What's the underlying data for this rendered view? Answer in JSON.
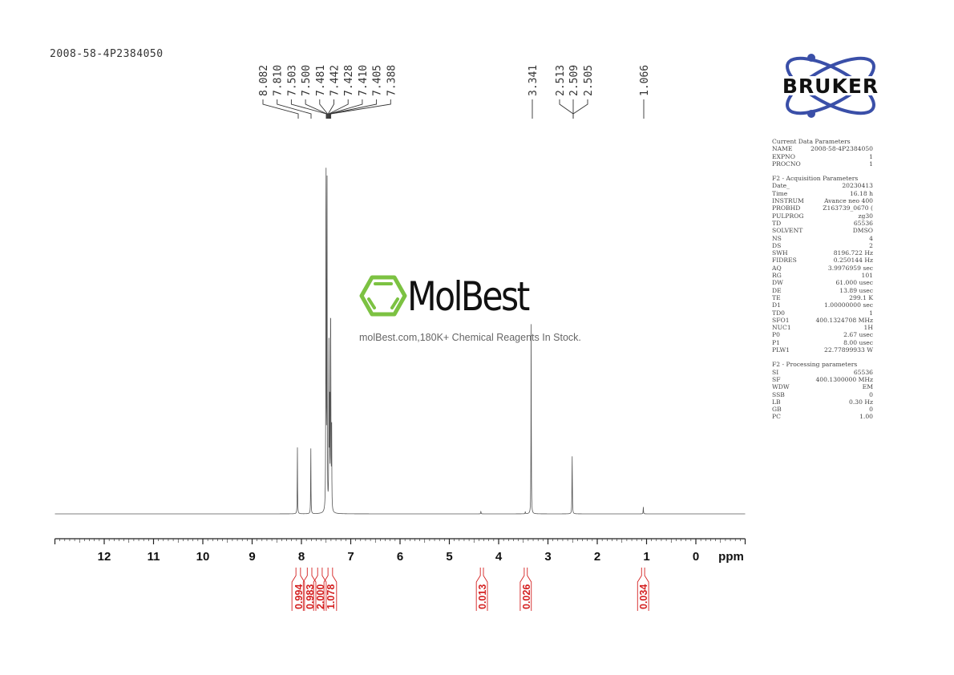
{
  "title": "2008-58-4P2384050",
  "logo": {
    "text": "BRUKER",
    "color": "#3a4fa8"
  },
  "watermark": {
    "name": "MolBest",
    "tagline": "molBest.com,180K+ Chemical Reagents In Stock.",
    "color": "#7cc242"
  },
  "parameters": [
    {
      "heading": "Current Data Parameters",
      "rows": [
        [
          "NAME",
          "2008-58-4P2384050"
        ],
        [
          "EXPNO",
          "1"
        ],
        [
          "PROCNO",
          "1"
        ]
      ]
    },
    {
      "heading": "F2 - Acquisition Parameters",
      "rows": [
        [
          "Date_",
          "20230413"
        ],
        [
          "Time",
          "16.18 h"
        ],
        [
          "INSTRUM",
          "Avance neo 400"
        ],
        [
          "PROBHD",
          "Z163739_0670 ("
        ],
        [
          "PULPROG",
          "zg30"
        ],
        [
          "TD",
          "65536"
        ],
        [
          "SOLVENT",
          "DMSO"
        ],
        [
          "NS",
          "4"
        ],
        [
          "DS",
          "2"
        ],
        [
          "SWH",
          "8196.722 Hz"
        ],
        [
          "FIDRES",
          "0.250144 Hz"
        ],
        [
          "AQ",
          "3.9976959 sec"
        ],
        [
          "RG",
          "101"
        ],
        [
          "DW",
          "61.000 usec"
        ],
        [
          "DE",
          "13.89 usec"
        ],
        [
          "TE",
          "299.1 K"
        ],
        [
          "D1",
          "1.00000000 sec"
        ],
        [
          "TD0",
          "1"
        ],
        [
          "SFO1",
          "400.1324708 MHz"
        ],
        [
          "NUC1",
          "1H"
        ],
        [
          "P0",
          "2.67 usec"
        ],
        [
          "P1",
          "8.00 usec"
        ],
        [
          "PLW1",
          "22.77899933 W"
        ]
      ]
    },
    {
      "heading": "F2 - Processing parameters",
      "rows": [
        [
          "SI",
          "65536"
        ],
        [
          "SF",
          "400.1300000 MHz"
        ],
        [
          "WDW",
          "EM"
        ],
        [
          "SSB",
          "0"
        ],
        [
          "LB",
          "0.30 Hz"
        ],
        [
          "GB",
          "0"
        ],
        [
          "PC",
          "1.00"
        ]
      ]
    }
  ],
  "chart_data": {
    "type": "line",
    "xlabel": "ppm",
    "xlim": [
      13,
      -1
    ],
    "x_reversed": true,
    "xticks": [
      "12",
      "11",
      "10",
      "9",
      "8",
      "7",
      "6",
      "5",
      "4",
      "3",
      "2",
      "1",
      "0"
    ],
    "line_color": "#555555",
    "peaks": [
      {
        "ppm": 8.082,
        "intensity": 18.6
      },
      {
        "ppm": 7.81,
        "intensity": 19.2
      },
      {
        "ppm": 7.503,
        "intensity": 60
      },
      {
        "ppm": 7.5,
        "intensity": 55
      },
      {
        "ppm": 7.481,
        "intensity": 100
      },
      {
        "ppm": 7.442,
        "intensity": 48
      },
      {
        "ppm": 7.428,
        "intensity": 30
      },
      {
        "ppm": 7.41,
        "intensity": 41
      },
      {
        "ppm": 7.405,
        "intensity": 35
      },
      {
        "ppm": 7.388,
        "intensity": 28
      },
      {
        "ppm": 4.36,
        "intensity": 0.8
      },
      {
        "ppm": 3.46,
        "intensity": 0.6
      },
      {
        "ppm": 3.341,
        "intensity": 52
      },
      {
        "ppm": 2.513,
        "intensity": 3
      },
      {
        "ppm": 2.509,
        "intensity": 13.6
      },
      {
        "ppm": 2.505,
        "intensity": 3
      },
      {
        "ppm": 1.066,
        "intensity": 2
      }
    ],
    "peak_labels_left": [
      "8.082",
      "7.810",
      "7.503",
      "7.500",
      "7.481",
      "7.442",
      "7.428",
      "7.410",
      "7.405",
      "7.388"
    ],
    "peak_labels_right": [
      "3.341",
      "2.513",
      "2.509",
      "2.505",
      "1.066"
    ],
    "integrals_color": "#d42020",
    "integrals": [
      {
        "from": 8.16,
        "to": 7.97,
        "value": "0.994"
      },
      {
        "from": 7.93,
        "to": 7.74,
        "value": "0.983"
      },
      {
        "from": 7.72,
        "to": 7.53,
        "value": "2.000"
      },
      {
        "from": 7.51,
        "to": 7.32,
        "value": "1.078"
      },
      {
        "from": 4.42,
        "to": 4.26,
        "value": "0.013"
      },
      {
        "from": 3.53,
        "to": 3.37,
        "value": "0.026"
      },
      {
        "from": 1.15,
        "to": 0.99,
        "value": "0.034"
      }
    ]
  }
}
